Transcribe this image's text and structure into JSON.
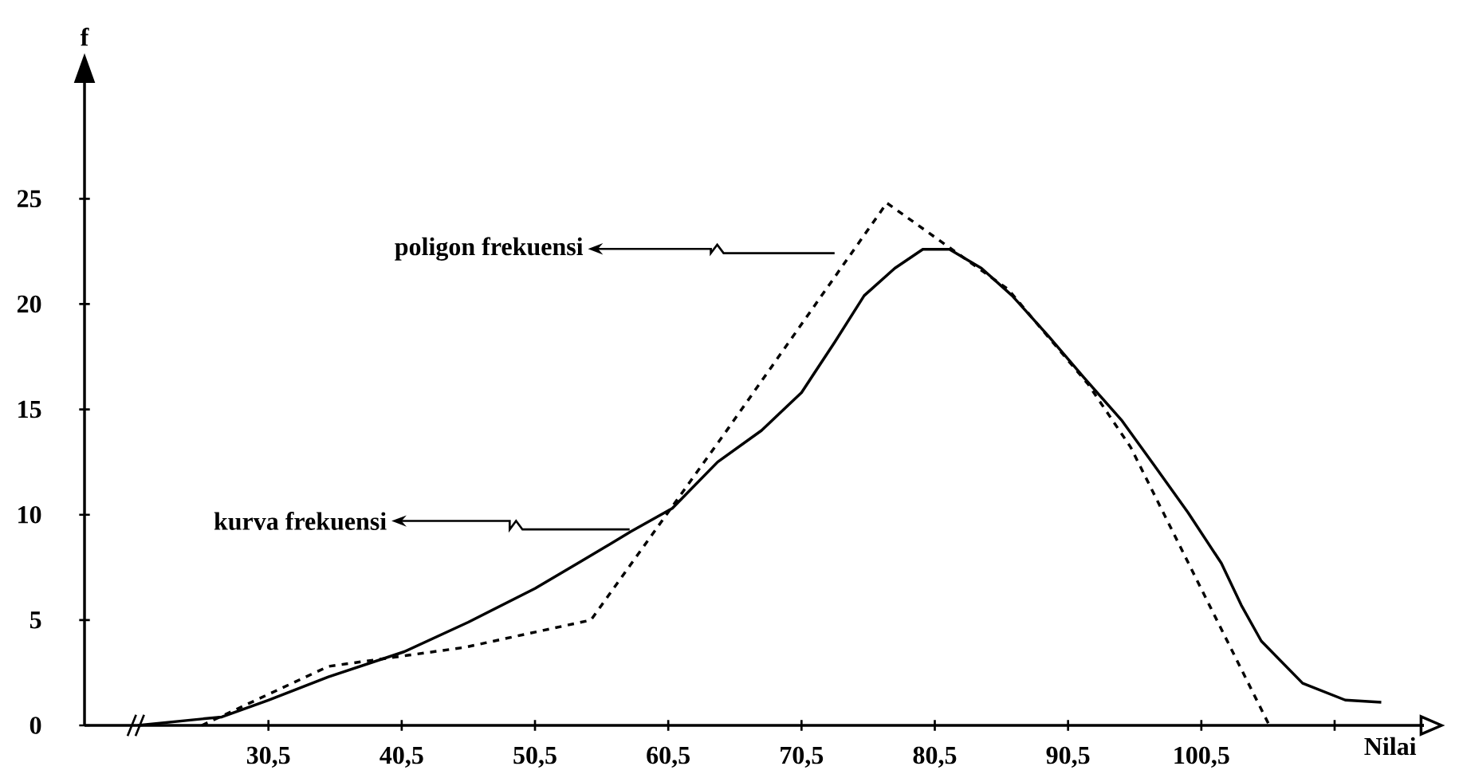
{
  "chart_data": {
    "type": "line",
    "xlabel": "Nilai",
    "ylabel": "f",
    "xlim": [
      16.7,
      117.2
    ],
    "ylim": [
      0,
      30.5
    ],
    "xticks": [
      {
        "value": 30.5,
        "label": "30,5"
      },
      {
        "value": 40.5,
        "label": "40,5"
      },
      {
        "value": 50.5,
        "label": "50,5"
      },
      {
        "value": 60.5,
        "label": "60,5"
      },
      {
        "value": 70.5,
        "label": "70,5"
      },
      {
        "value": 80.5,
        "label": "80,5"
      },
      {
        "value": 90.5,
        "label": "90,5"
      },
      {
        "value": 100.5,
        "label": "100,5"
      },
      {
        "value": 110.5,
        "label": null
      }
    ],
    "yticks": [
      0,
      5,
      10,
      15,
      20,
      25
    ],
    "series": [
      {
        "color": "#000000",
        "line_style": "dashed",
        "x": [
          25.5,
          35,
          45.2,
          54.7,
          65,
          76.9,
          86,
          92,
          95.2,
          105.6
        ],
        "values": [
          0,
          2.8,
          3.7,
          5.0,
          14.1,
          24.8,
          20.7,
          16.2,
          13.2,
          0
        ]
      },
      {
        "color": "#000000",
        "line_style": "solid",
        "x": [
          20.7,
          27,
          30.5,
          35,
          40.7,
          45.5,
          50.5,
          54,
          57.7,
          60.8,
          64.2,
          67.5,
          70.5,
          73,
          75.2,
          77.5,
          79.6,
          81.6,
          84,
          86.3,
          89,
          91.7,
          94.5,
          96.9,
          99.5,
          102,
          103.5,
          105,
          108.1,
          111.3,
          114
        ],
        "values": [
          0,
          0.4,
          1.2,
          2.3,
          3.5,
          4.9,
          6.5,
          7.8,
          9.2,
          10.3,
          12.5,
          14,
          15.8,
          18.2,
          20.4,
          21.7,
          22.6,
          22.6,
          21.7,
          20.4,
          18.5,
          16.5,
          14.5,
          12.4,
          10.1,
          7.7,
          5.7,
          4.0,
          2.0,
          1.2,
          1.1
        ]
      }
    ],
    "annotations": [
      "poligon frekuensi",
      {
        "text": "kurva frekuensi",
        "x": 57.6,
        "y": 9.3
      }
    ]
  }
}
